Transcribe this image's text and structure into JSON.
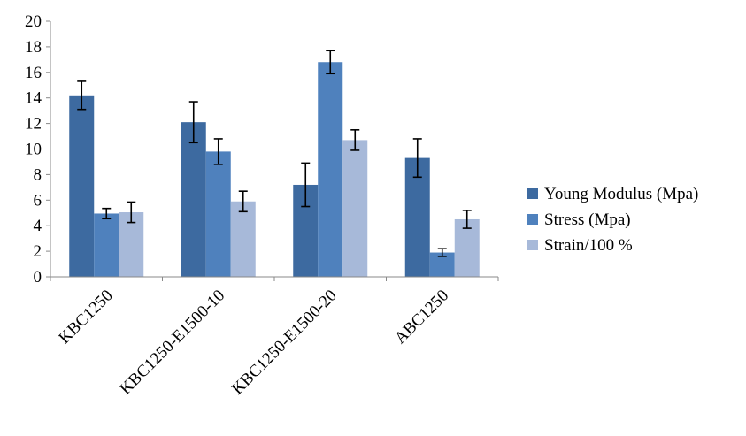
{
  "chart_data": {
    "type": "bar",
    "title": "",
    "xlabel": "",
    "ylabel": "",
    "ylim": [
      0,
      20
    ],
    "yticks": [
      0,
      2,
      4,
      6,
      8,
      10,
      12,
      14,
      16,
      18,
      20
    ],
    "grid": false,
    "legend_position": "right",
    "categories": [
      "KBC1250",
      "KBC1250-E1500-10",
      "KBC1250-E1500-20",
      "ABC1250"
    ],
    "series": [
      {
        "name": "Young Modulus (Mpa)",
        "color": "#3d6aa0",
        "values": [
          14.2,
          12.1,
          7.2,
          9.3
        ],
        "errors": [
          1.1,
          1.6,
          1.7,
          1.5
        ]
      },
      {
        "name": "Stress (Mpa)",
        "color": "#4f81bd",
        "values": [
          4.95,
          9.8,
          16.8,
          1.9
        ],
        "errors": [
          0.4,
          1.0,
          0.9,
          0.3
        ]
      },
      {
        "name": "Strain/100 %",
        "color": "#a7b9d9",
        "values": [
          5.05,
          5.9,
          10.7,
          4.5
        ],
        "errors": [
          0.8,
          0.8,
          0.8,
          0.7
        ]
      }
    ]
  }
}
